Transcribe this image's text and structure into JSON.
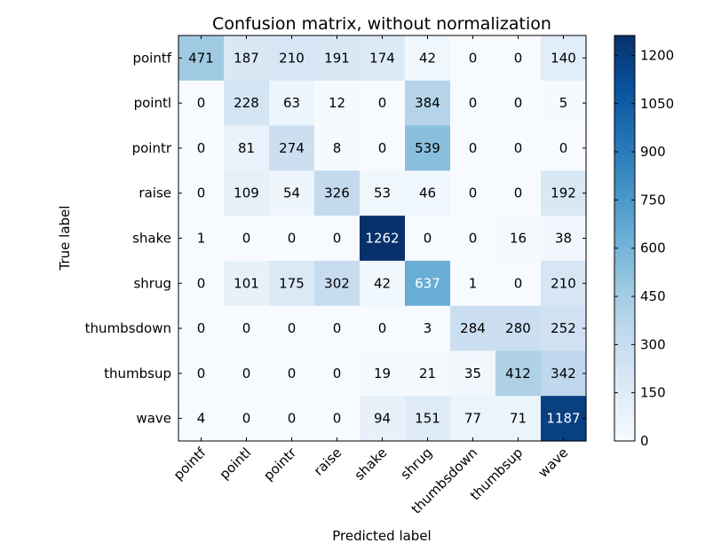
{
  "chart_data": {
    "type": "heatmap",
    "title": "Confusion matrix, without normalization",
    "xlabel": "Predicted label",
    "ylabel": "True label",
    "x_categories": [
      "pointf",
      "pointl",
      "pointr",
      "raise",
      "shake",
      "shrug",
      "thumbsdown",
      "thumbsup",
      "wave"
    ],
    "y_categories": [
      "pointf",
      "pointl",
      "pointr",
      "raise",
      "shake",
      "shrug",
      "thumbsdown",
      "thumbsup",
      "wave"
    ],
    "values": [
      [
        471,
        187,
        210,
        191,
        174,
        42,
        0,
        0,
        140
      ],
      [
        0,
        228,
        63,
        12,
        0,
        384,
        0,
        0,
        5
      ],
      [
        0,
        81,
        274,
        8,
        0,
        539,
        0,
        0,
        0
      ],
      [
        0,
        109,
        54,
        326,
        53,
        46,
        0,
        0,
        192
      ],
      [
        1,
        0,
        0,
        0,
        1262,
        0,
        0,
        16,
        38
      ],
      [
        0,
        101,
        175,
        302,
        42,
        637,
        1,
        0,
        210
      ],
      [
        0,
        0,
        0,
        0,
        0,
        3,
        284,
        280,
        252
      ],
      [
        0,
        0,
        0,
        0,
        19,
        21,
        35,
        412,
        342
      ],
      [
        4,
        0,
        0,
        0,
        94,
        151,
        77,
        71,
        1187
      ]
    ],
    "colormap": "Blues",
    "colorbar": {
      "range": [
        0,
        1262
      ],
      "ticks": [
        0,
        150,
        300,
        450,
        600,
        750,
        900,
        1050,
        1200
      ]
    },
    "legend": "none",
    "grid": false
  }
}
